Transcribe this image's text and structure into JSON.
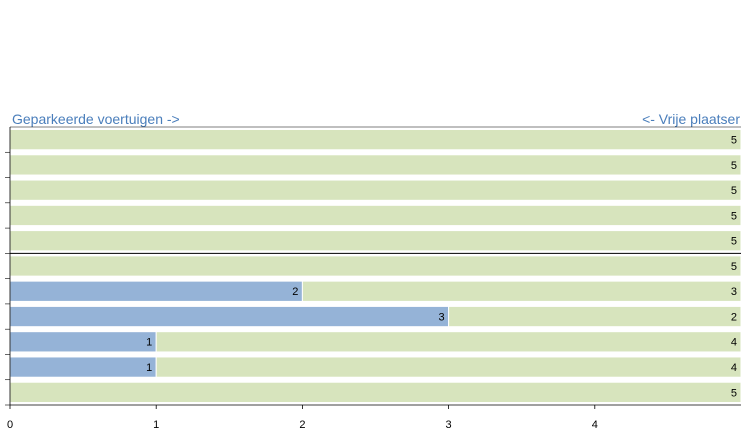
{
  "chart_data": {
    "type": "stacked-barh",
    "annotations": [
      "Geparkeerde voertuigen ->",
      "<- Vrije plaatser"
    ],
    "series": [
      {
        "name": "Geparkeerde voertuigen",
        "color": "#95b3d7",
        "values": [
          0,
          0,
          0,
          0,
          0,
          0,
          2,
          3,
          1,
          1,
          0
        ]
      },
      {
        "name": "Vrije plaatsen",
        "color": "#d7e4bd",
        "values": [
          5,
          5,
          5,
          5,
          5,
          5,
          3,
          2,
          4,
          4,
          5
        ]
      }
    ],
    "xlim": [
      0,
      5
    ],
    "xticks": [
      0,
      1,
      2,
      3,
      4
    ]
  }
}
